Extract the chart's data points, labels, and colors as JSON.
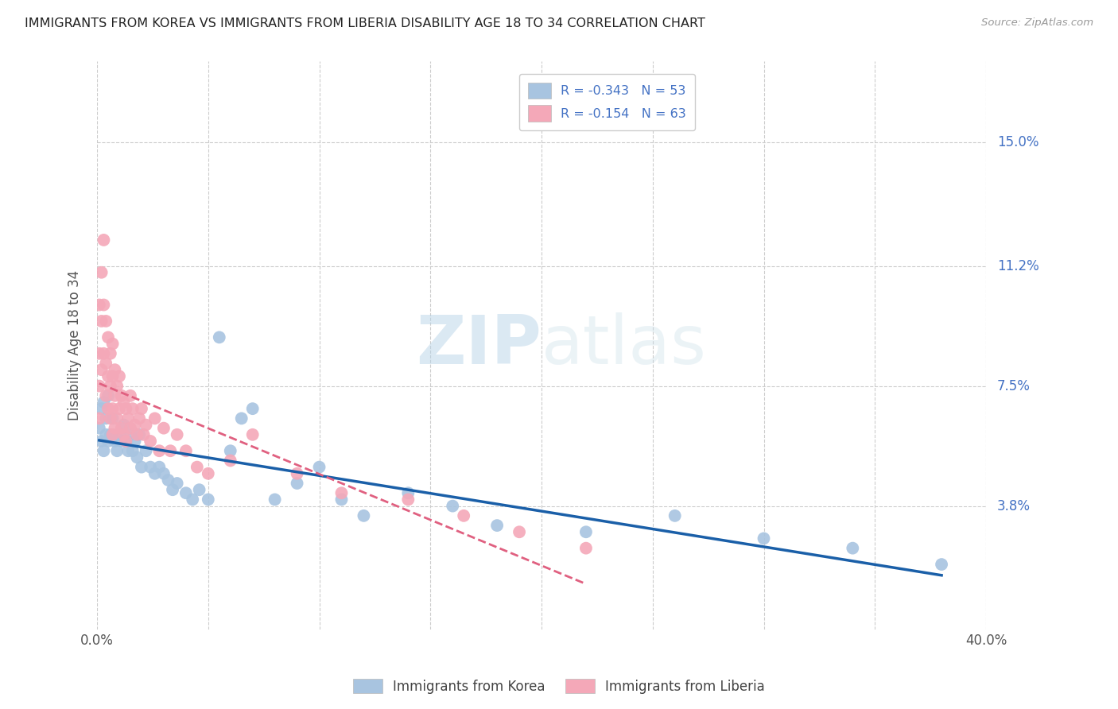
{
  "title": "IMMIGRANTS FROM KOREA VS IMMIGRANTS FROM LIBERIA DISABILITY AGE 18 TO 34 CORRELATION CHART",
  "source": "Source: ZipAtlas.com",
  "ylabel": "Disability Age 18 to 34",
  "yticks": [
    "15.0%",
    "11.2%",
    "7.5%",
    "3.8%"
  ],
  "ytick_vals": [
    0.15,
    0.112,
    0.075,
    0.038
  ],
  "xlim": [
    0.0,
    0.4
  ],
  "ylim": [
    0.0,
    0.175
  ],
  "legend_korea": "R = -0.343   N = 53",
  "legend_liberia": "R = -0.154   N = 63",
  "korea_color": "#a8c4e0",
  "liberia_color": "#f4a8b8",
  "korea_line_color": "#1a5fa8",
  "liberia_line_color": "#e06080",
  "watermark_ZIP": "ZIP",
  "watermark_atlas": "atlas",
  "korea_scatter_x": [
    0.001,
    0.002,
    0.002,
    0.003,
    0.003,
    0.004,
    0.004,
    0.005,
    0.005,
    0.006,
    0.007,
    0.008,
    0.009,
    0.01,
    0.011,
    0.012,
    0.013,
    0.014,
    0.015,
    0.016,
    0.017,
    0.018,
    0.019,
    0.02,
    0.022,
    0.024,
    0.026,
    0.028,
    0.03,
    0.032,
    0.034,
    0.036,
    0.04,
    0.043,
    0.046,
    0.05,
    0.055,
    0.06,
    0.065,
    0.07,
    0.08,
    0.09,
    0.1,
    0.11,
    0.12,
    0.14,
    0.16,
    0.18,
    0.22,
    0.26,
    0.3,
    0.34,
    0.38
  ],
  "korea_scatter_y": [
    0.062,
    0.058,
    0.068,
    0.055,
    0.07,
    0.06,
    0.065,
    0.058,
    0.072,
    0.06,
    0.065,
    0.058,
    0.055,
    0.06,
    0.058,
    0.063,
    0.058,
    0.055,
    0.06,
    0.055,
    0.058,
    0.053,
    0.06,
    0.05,
    0.055,
    0.05,
    0.048,
    0.05,
    0.048,
    0.046,
    0.043,
    0.045,
    0.042,
    0.04,
    0.043,
    0.04,
    0.09,
    0.055,
    0.065,
    0.068,
    0.04,
    0.045,
    0.05,
    0.04,
    0.035,
    0.042,
    0.038,
    0.032,
    0.03,
    0.035,
    0.028,
    0.025,
    0.02
  ],
  "liberia_scatter_x": [
    0.001,
    0.001,
    0.001,
    0.001,
    0.002,
    0.002,
    0.002,
    0.003,
    0.003,
    0.003,
    0.004,
    0.004,
    0.004,
    0.005,
    0.005,
    0.005,
    0.006,
    0.006,
    0.006,
    0.007,
    0.007,
    0.007,
    0.007,
    0.008,
    0.008,
    0.008,
    0.009,
    0.009,
    0.01,
    0.01,
    0.011,
    0.011,
    0.012,
    0.012,
    0.013,
    0.013,
    0.014,
    0.015,
    0.015,
    0.016,
    0.017,
    0.018,
    0.019,
    0.02,
    0.021,
    0.022,
    0.024,
    0.026,
    0.028,
    0.03,
    0.033,
    0.036,
    0.04,
    0.045,
    0.05,
    0.06,
    0.07,
    0.09,
    0.11,
    0.14,
    0.165,
    0.19,
    0.22
  ],
  "liberia_scatter_y": [
    0.1,
    0.085,
    0.075,
    0.065,
    0.11,
    0.095,
    0.08,
    0.12,
    0.1,
    0.085,
    0.095,
    0.082,
    0.072,
    0.09,
    0.078,
    0.068,
    0.085,
    0.075,
    0.065,
    0.088,
    0.078,
    0.068,
    0.06,
    0.08,
    0.072,
    0.062,
    0.075,
    0.065,
    0.078,
    0.068,
    0.072,
    0.062,
    0.07,
    0.06,
    0.068,
    0.058,
    0.065,
    0.072,
    0.062,
    0.068,
    0.063,
    0.06,
    0.065,
    0.068,
    0.06,
    0.063,
    0.058,
    0.065,
    0.055,
    0.062,
    0.055,
    0.06,
    0.055,
    0.05,
    0.048,
    0.052,
    0.06,
    0.048,
    0.042,
    0.04,
    0.035,
    0.03,
    0.025
  ]
}
